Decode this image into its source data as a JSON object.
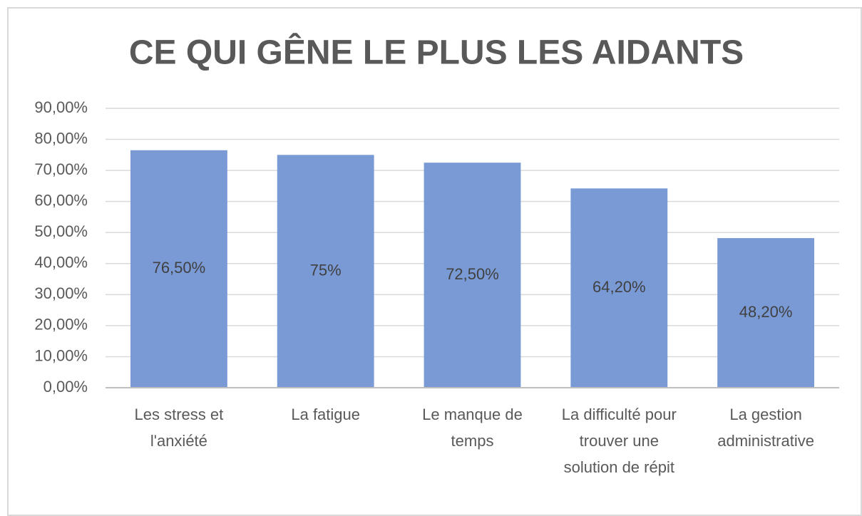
{
  "chart_data": {
    "type": "bar",
    "title": "CE QUI GÊNE LE PLUS LES AIDANTS",
    "categories": [
      "Les stress et l'anxiété",
      "La fatigue",
      "Le manque de temps",
      "La difficulté pour trouver une solution de répit",
      "La gestion administrative"
    ],
    "values": [
      76.5,
      75,
      72.5,
      64.2,
      48.2
    ],
    "value_labels": [
      "76,50%",
      "75%",
      "72,50%",
      "64,20%",
      "48,20%"
    ],
    "color": "#7a9ad6",
    "ylim": [
      0,
      90
    ],
    "yticks": [
      {
        "value": 0,
        "label": "0,00%"
      },
      {
        "value": 10,
        "label": "10,00%"
      },
      {
        "value": 20,
        "label": "20,00%"
      },
      {
        "value": 30,
        "label": "30,00%"
      },
      {
        "value": 40,
        "label": "40,00%"
      },
      {
        "value": 50,
        "label": "50,00%"
      },
      {
        "value": 60,
        "label": "60,00%"
      },
      {
        "value": 70,
        "label": "70,00%"
      },
      {
        "value": 80,
        "label": "80,00%"
      },
      {
        "value": 90,
        "label": "90,00%"
      }
    ],
    "grid": true
  }
}
